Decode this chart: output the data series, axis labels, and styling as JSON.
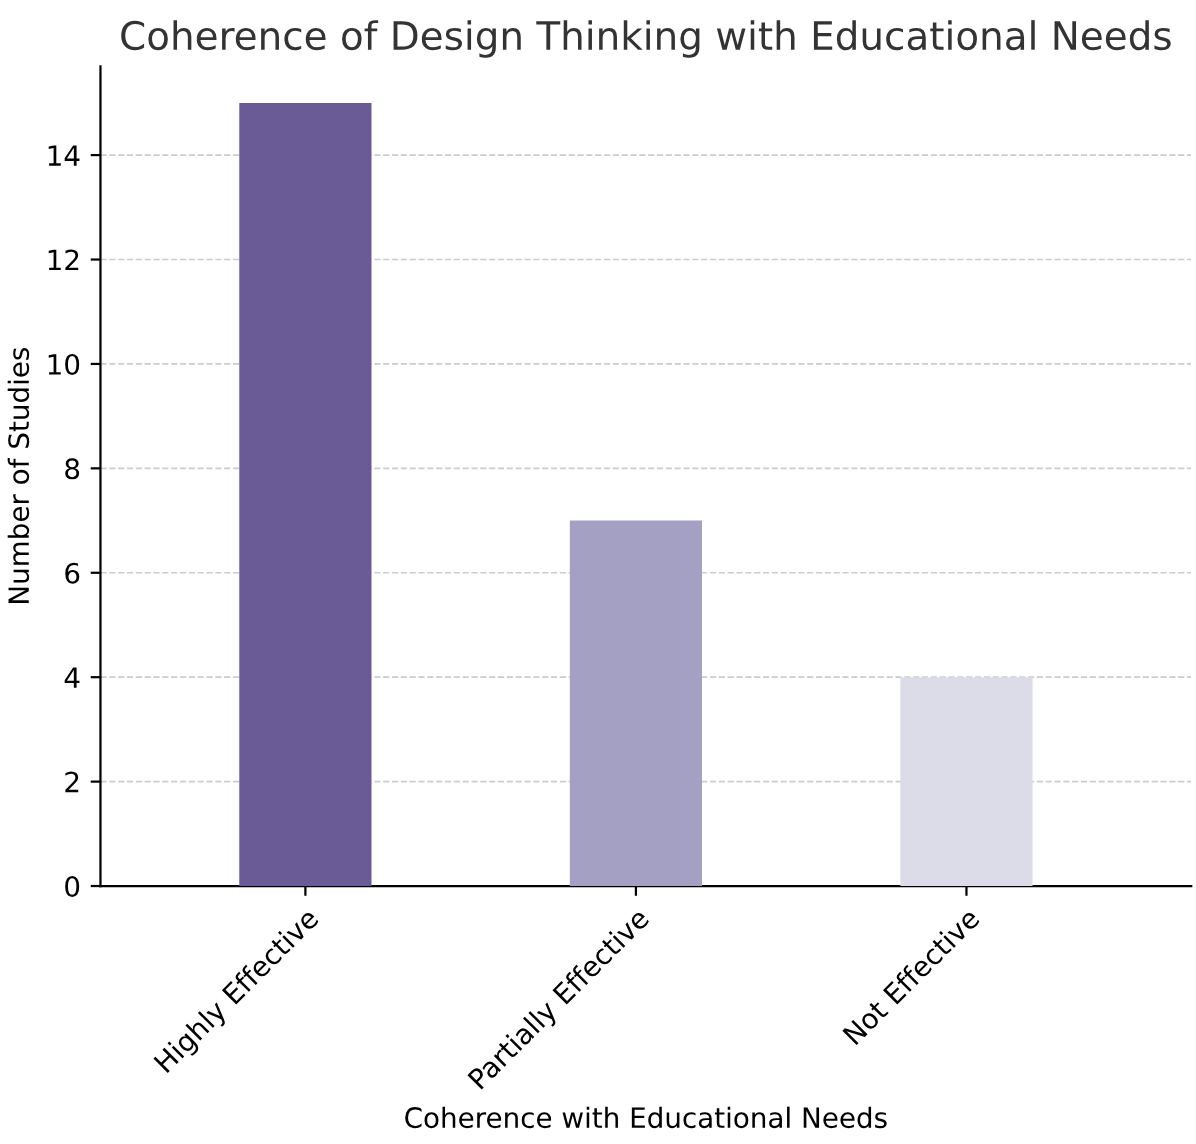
{
  "chart_data": {
    "type": "bar",
    "title": "Coherence of Design Thinking with Educational Needs",
    "xlabel": "Coherence with Educational Needs",
    "ylabel": "Number of Studies",
    "categories": [
      "Highly Effective",
      "Partially Effective",
      "Not Effective"
    ],
    "values": [
      15,
      7,
      4
    ],
    "colors": [
      "#6a5a96",
      "#a3a0c4",
      "#dcdce8"
    ],
    "ylim": [
      0,
      15.7
    ],
    "yticks": [
      0,
      2,
      4,
      6,
      8,
      10,
      12,
      14
    ],
    "grid": "y"
  }
}
